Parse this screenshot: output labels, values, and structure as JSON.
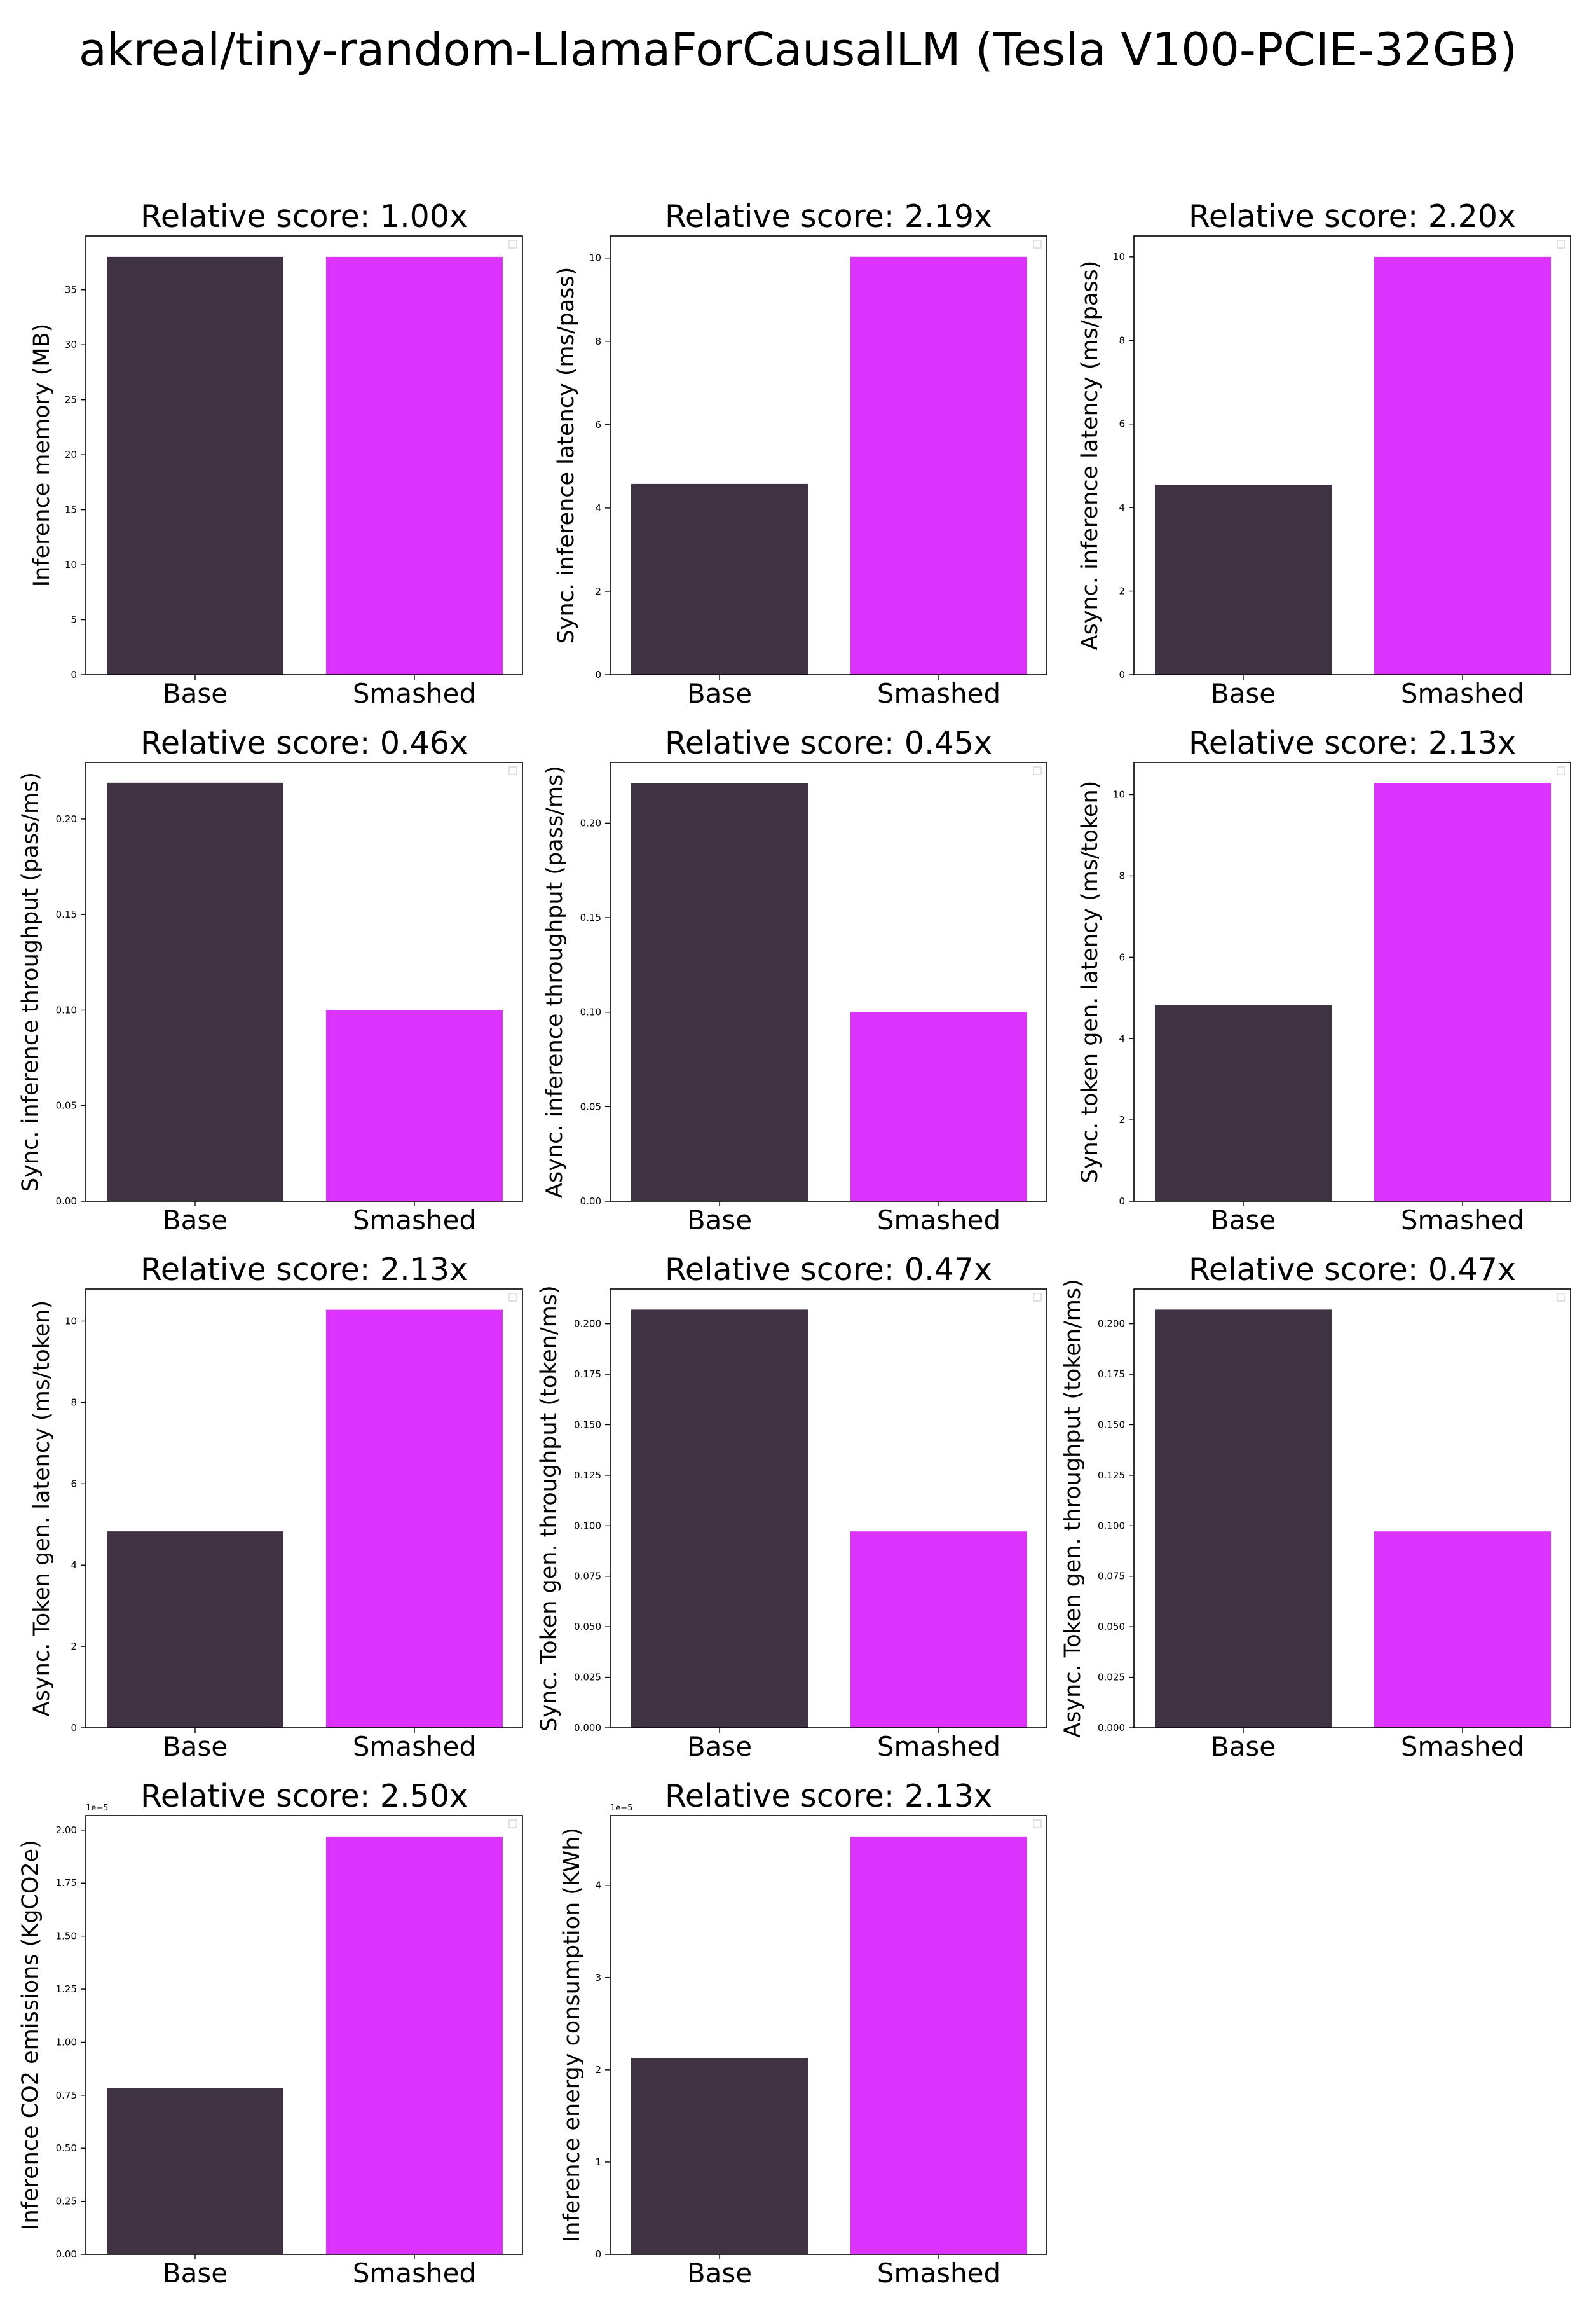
{
  "title": "akreal/tiny-random-LlamaForCausalLM (Tesla V100-PCIE-32GB)",
  "colors": {
    "base": "#3f3242",
    "smashed": "#dd33ff",
    "axis": "#000000"
  },
  "chart_data": [
    {
      "type": "bar",
      "title": "Relative score: 1.00x",
      "ylabel": "Inference memory (MB)",
      "categories": [
        "Base",
        "Smashed"
      ],
      "values": [
        38.0,
        38.0
      ],
      "ylim": [
        0,
        39.9
      ],
      "yticks": [
        0,
        5,
        10,
        15,
        20,
        25,
        30,
        35
      ],
      "yticklabels": [
        "0",
        "5",
        "10",
        "15",
        "20",
        "25",
        "30",
        "35"
      ],
      "offset_label": ""
    },
    {
      "type": "bar",
      "title": "Relative score: 2.19x",
      "ylabel": "Sync. inference latency (ms/pass)",
      "categories": [
        "Base",
        "Smashed"
      ],
      "values": [
        4.58,
        10.03
      ],
      "ylim": [
        0,
        10.53
      ],
      "yticks": [
        0,
        2,
        4,
        6,
        8,
        10
      ],
      "yticklabels": [
        "0",
        "2",
        "4",
        "6",
        "8",
        "10"
      ],
      "offset_label": ""
    },
    {
      "type": "bar",
      "title": "Relative score: 2.20x",
      "ylabel": "Async. inference latency (ms/pass)",
      "categories": [
        "Base",
        "Smashed"
      ],
      "values": [
        4.55,
        10.0
      ],
      "ylim": [
        0,
        10.5
      ],
      "yticks": [
        0,
        2,
        4,
        6,
        8,
        10
      ],
      "yticklabels": [
        "0",
        "2",
        "4",
        "6",
        "8",
        "10"
      ],
      "offset_label": ""
    },
    {
      "type": "bar",
      "title": "Relative score: 0.46x",
      "ylabel": "Sync. inference throughput (pass/ms)",
      "categories": [
        "Base",
        "Smashed"
      ],
      "values": [
        0.219,
        0.1
      ],
      "ylim": [
        0,
        0.2296
      ],
      "yticks": [
        0,
        0.05,
        0.1,
        0.15,
        0.2
      ],
      "yticklabels": [
        "0.00",
        "0.05",
        "0.10",
        "0.15",
        "0.20"
      ],
      "offset_label": ""
    },
    {
      "type": "bar",
      "title": "Relative score: 0.45x",
      "ylabel": "Async. inference throughput (pass/ms)",
      "categories": [
        "Base",
        "Smashed"
      ],
      "values": [
        0.221,
        0.1
      ],
      "ylim": [
        0,
        0.2321
      ],
      "yticks": [
        0,
        0.05,
        0.1,
        0.15,
        0.2
      ],
      "yticklabels": [
        "0.00",
        "0.05",
        "0.10",
        "0.15",
        "0.20"
      ],
      "offset_label": ""
    },
    {
      "type": "bar",
      "title": "Relative score: 2.13x",
      "ylabel": "Sync. token gen. latency (ms/token)",
      "categories": [
        "Base",
        "Smashed"
      ],
      "values": [
        4.82,
        10.28
      ],
      "ylim": [
        0,
        10.79
      ],
      "yticks": [
        0,
        2,
        4,
        6,
        8,
        10
      ],
      "yticklabels": [
        "0",
        "2",
        "4",
        "6",
        "8",
        "10"
      ],
      "offset_label": ""
    },
    {
      "type": "bar",
      "title": "Relative score: 2.13x",
      "ylabel": "Async. Token gen. latency (ms/token)",
      "categories": [
        "Base",
        "Smashed"
      ],
      "values": [
        4.83,
        10.28
      ],
      "ylim": [
        0,
        10.79
      ],
      "yticks": [
        0,
        2,
        4,
        6,
        8,
        10
      ],
      "yticklabels": [
        "0",
        "2",
        "4",
        "6",
        "8",
        "10"
      ],
      "offset_label": ""
    },
    {
      "type": "bar",
      "title": "Relative score: 0.47x",
      "ylabel": "Sync. Token gen. throughput (token/ms)",
      "categories": [
        "Base",
        "Smashed"
      ],
      "values": [
        0.207,
        0.0972
      ],
      "ylim": [
        0,
        0.2172
      ],
      "yticks": [
        0,
        0.025,
        0.05,
        0.075,
        0.1,
        0.125,
        0.15,
        0.175,
        0.2
      ],
      "yticklabels": [
        "0.000",
        "0.025",
        "0.050",
        "0.075",
        "0.100",
        "0.125",
        "0.150",
        "0.175",
        "0.200"
      ],
      "offset_label": ""
    },
    {
      "type": "bar",
      "title": "Relative score: 0.47x",
      "ylabel": "Async. Token gen. throughput (token/ms)",
      "categories": [
        "Base",
        "Smashed"
      ],
      "values": [
        0.207,
        0.0972
      ],
      "ylim": [
        0,
        0.2172
      ],
      "yticks": [
        0,
        0.025,
        0.05,
        0.075,
        0.1,
        0.125,
        0.15,
        0.175,
        0.2
      ],
      "yticklabels": [
        "0.000",
        "0.025",
        "0.050",
        "0.075",
        "0.100",
        "0.125",
        "0.150",
        "0.175",
        "0.200"
      ],
      "offset_label": ""
    },
    {
      "type": "bar",
      "title": "Relative score: 2.50x",
      "ylabel": "Inference CO2 emissions (KgCO2e)",
      "categories": [
        "Base",
        "Smashed"
      ],
      "values": [
        0.785,
        1.97
      ],
      "ylim": [
        0,
        2.0685
      ],
      "yticks": [
        0,
        0.25,
        0.5,
        0.75,
        1.0,
        1.25,
        1.5,
        1.75,
        2.0
      ],
      "yticklabels": [
        "0.00",
        "0.25",
        "0.50",
        "0.75",
        "1.00",
        "1.25",
        "1.50",
        "1.75",
        "2.00"
      ],
      "offset_label": "1e−5"
    },
    {
      "type": "bar",
      "title": "Relative score: 2.13x",
      "ylabel": "Inference energy consumption (KWh)",
      "categories": [
        "Base",
        "Smashed"
      ],
      "values": [
        2.13,
        4.53
      ],
      "ylim": [
        0,
        4.7565
      ],
      "yticks": [
        0,
        1,
        2,
        3,
        4
      ],
      "yticklabels": [
        "0",
        "1",
        "2",
        "3",
        "4"
      ],
      "offset_label": "1e−5"
    }
  ]
}
